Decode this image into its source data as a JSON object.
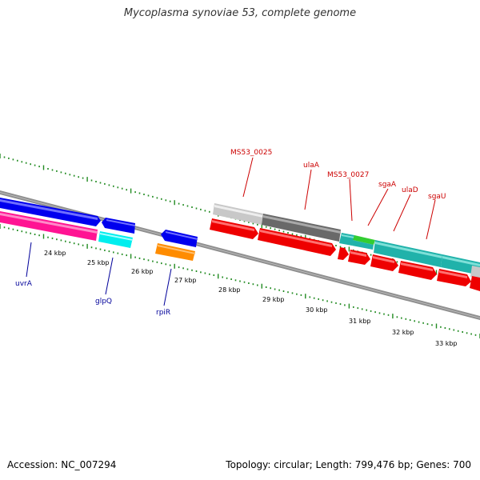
{
  "title": "Mycoplasma synoviae 53, complete genome",
  "accession": "Accession: NC_007294",
  "summary": "Topology: circular; Length: 799,476 bp; Genes: 700",
  "colors": {
    "backbone": "#8a8a8a",
    "tick": "#228b22",
    "gene_label_red": "#cc0000",
    "gene_label_blue": "#00009a",
    "blue_cds": "#0000ee",
    "pink_cds": "#ff1493",
    "cyan_cds": "#00eeee",
    "orange_cds": "#ff8c00",
    "red_cds": "#ee0000",
    "light_gray_cds": "#c8c8c8",
    "dark_gray_cds": "#696969",
    "teal_cds": "#20b2aa",
    "green_cds": "#32cd32"
  },
  "kbp_ticks": [
    "24 kbp",
    "25 kbp",
    "26 kbp",
    "27 kbp",
    "28 kbp",
    "29 kbp",
    "30 kbp",
    "31 kbp",
    "32 kbp",
    "33 kbp"
  ],
  "gene_labels": {
    "uvrA": "uvrA",
    "glpQ": "glpQ",
    "rpiR": "rpiR",
    "ms53_0025": "MS53_0025",
    "ulaA": "ulaA",
    "ms53_0027": "MS53_0027",
    "sgaA": "sgaA",
    "ulaD": "ulaD",
    "sgaU": "sgaU"
  }
}
